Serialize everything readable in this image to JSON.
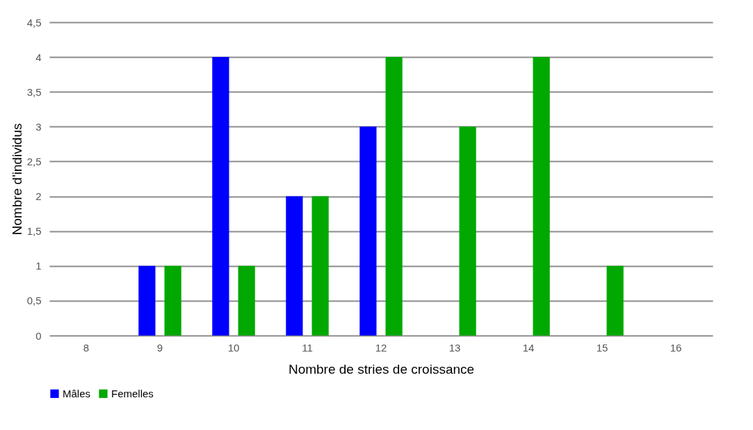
{
  "chart_data": {
    "type": "bar",
    "xlabel": "Nombre de stries de croissance",
    "ylabel": "Nombre d'individus",
    "categories": [
      "8",
      "9",
      "10",
      "11",
      "12",
      "13",
      "14",
      "15",
      "16"
    ],
    "series": [
      {
        "name": "Mâles",
        "color": "#0000ff",
        "values": [
          0,
          1,
          4,
          2,
          3,
          0,
          0,
          0,
          0
        ]
      },
      {
        "name": "Femelles",
        "color": "#00a800",
        "values": [
          0,
          1,
          1,
          2,
          4,
          3,
          4,
          1,
          0
        ]
      }
    ],
    "ylim": [
      0,
      4.5
    ],
    "yticks": [
      0,
      {
        "value": 0.5,
        "label": "0,5"
      },
      1,
      {
        "value": 1.5,
        "label": "1,5"
      },
      2,
      {
        "value": 2.5,
        "label": "2,5"
      },
      3,
      {
        "value": 3.5,
        "label": "3,5"
      },
      4,
      {
        "value": 4.5,
        "label": "4,5"
      }
    ],
    "grid": "y",
    "legend": "bottom"
  }
}
